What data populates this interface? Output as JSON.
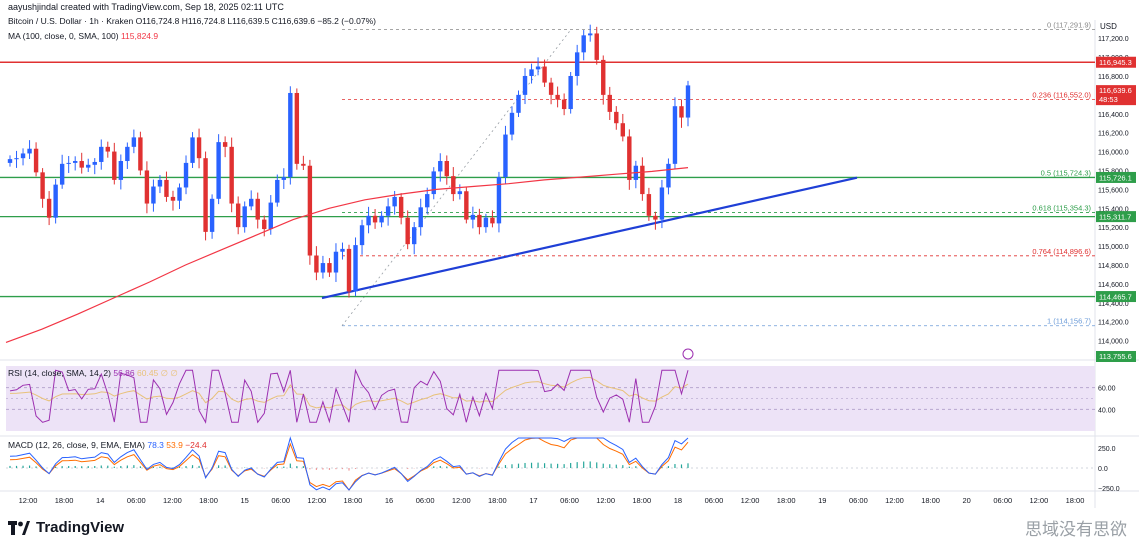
{
  "header": {
    "creator_line": "aayushjindal created with TradingView.com, Sep 18, 2025 02:11 UTC",
    "symbol": "Bitcoin / U.S. Dollar · 1h · Kraken",
    "ohlc": "O116,724.8 H116,724.8 L116,639.5 C116,639.6 −85.2 (−0.07%)",
    "ma_label": "MA (100, close, 0, SMA, 100)",
    "ma_value": "115,824.9"
  },
  "indicators": {
    "rsi_label": "RSI (14, close, SMA, 14, 2)",
    "rsi_value": "56.86",
    "rsi_extra": "60.45  ∅  ∅",
    "macd_label": "MACD (12, 26, close, 9, EMA, EMA)",
    "macd_v1": "78.3",
    "macd_v2": "53.9",
    "macd_v3": "−24.4"
  },
  "axis": {
    "currency": "USD",
    "price_ticks": [
      "117,200.0",
      "117,000.0",
      "116,800.0",
      "116,600.0",
      "116,400.0",
      "116,200.0",
      "116,000.0",
      "115,800.0",
      "115,600.0",
      "115,400.0",
      "115,200.0",
      "115,000.0",
      "114,800.0",
      "114,600.0",
      "114,400.0",
      "114,200.0",
      "114,000.0"
    ],
    "rsi_ticks": [
      "60.00",
      "40.00"
    ],
    "macd_ticks": [
      "250.0",
      "0.0",
      "−250.0"
    ],
    "time_ticks": [
      "12:00",
      "18:00",
      "14",
      "06:00",
      "12:00",
      "18:00",
      "15",
      "06:00",
      "12:00",
      "18:00",
      "16",
      "06:00",
      "12:00",
      "18:00",
      "17",
      "06:00",
      "12:00",
      "18:00",
      "18",
      "06:00",
      "12:00",
      "18:00",
      "19",
      "06:00",
      "12:00",
      "18:00",
      "20",
      "06:00",
      "12:00",
      "18:00"
    ]
  },
  "price_tags": {
    "red_line": "116,945.3",
    "current": "116,639.6",
    "countdown": "48:53",
    "green_upper": "115,726.1",
    "green_mid": "115,311.7",
    "green_lower": "114,465.7",
    "bottom": "113,755.6"
  },
  "fib_levels": [
    {
      "ratio": "0",
      "label": "0 (117,291.9)",
      "price": 117291.9
    },
    {
      "ratio": "0.236",
      "label": "0.236 (116,552.0)",
      "price": 116552.0
    },
    {
      "ratio": "0.5",
      "label": "0.5 (115,724.3)",
      "price": 115724.3
    },
    {
      "ratio": "0.618",
      "label": "0.618 (115,354.3)",
      "price": 115354.3
    },
    {
      "ratio": "0.764",
      "label": "0.764 (114,896.6)",
      "price": 114896.6
    },
    {
      "ratio": "1",
      "label": "1 (114,156.7)",
      "price": 114156.7
    }
  ],
  "horizontal_levels": {
    "red": 116945.3,
    "green": [
      115726.1,
      115311.7,
      114465.7
    ]
  },
  "chart_data": {
    "type": "line",
    "title": "Bitcoin / U.S. Dollar · 1h · Kraken",
    "ylim": [
      113900,
      117350
    ],
    "closes": [
      115920,
      115930,
      115980,
      116030,
      115780,
      115500,
      115300,
      115650,
      115870,
      115880,
      115900,
      115830,
      115860,
      115890,
      116050,
      116000,
      115700,
      115900,
      116050,
      116150,
      115800,
      115450,
      115630,
      115700,
      115520,
      115480,
      115620,
      115880,
      116150,
      115930,
      115150,
      115500,
      116100,
      116050,
      115450,
      115200,
      115420,
      115500,
      115280,
      115180,
      115460,
      115700,
      115730,
      116620,
      115870,
      115850,
      114900,
      114720,
      114820,
      114720,
      114940,
      114970,
      114520,
      115010,
      115220,
      115320,
      115250,
      115320,
      115420,
      115520,
      115300,
      115020,
      115200,
      115410,
      115550,
      115790,
      115900,
      115740,
      115550,
      115580,
      115280,
      115330,
      115200,
      115300,
      115240,
      115730,
      116180,
      116410,
      116600,
      116800,
      116870,
      116900,
      116730,
      116600,
      116550,
      116450,
      116800,
      117050,
      117230,
      117250,
      116970,
      116600,
      116420,
      116300,
      116160,
      115700,
      115850,
      115550,
      115320,
      115280,
      115620,
      115870,
      116480,
      116360,
      116700
    ],
    "ma100": [
      113980,
      114120,
      114280,
      114450,
      114620,
      114800,
      114960,
      115120,
      115280,
      115400,
      115490,
      115550,
      115600,
      115630,
      115660,
      115700,
      115730,
      115760,
      115790,
      115830
    ]
  },
  "footer": {
    "brand": "TradingView",
    "watermark": "思域没有思欲"
  },
  "colors": {
    "bull": "#2962ff",
    "bear": "#e03131",
    "ma": "#f23645",
    "support_green": "#2e9e4a",
    "trendline": "#1f3fd6",
    "rsi_fill": "#ede3f7",
    "rsi_line": "#9c2fb0"
  }
}
